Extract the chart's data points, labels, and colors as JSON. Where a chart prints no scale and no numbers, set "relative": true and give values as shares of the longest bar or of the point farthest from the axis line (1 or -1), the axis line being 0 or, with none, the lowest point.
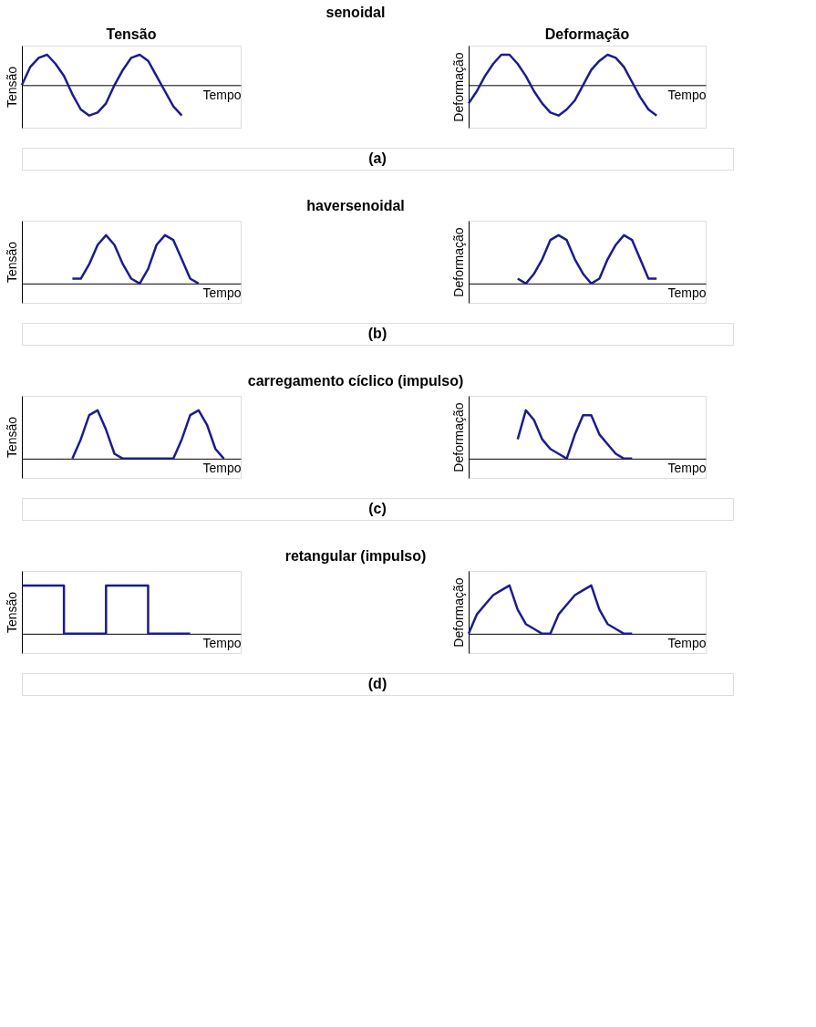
{
  "chart_data": [
    {
      "type": "line",
      "relative": true,
      "title": "Tensão",
      "ylabel": "Tensão",
      "xlabel": "Tempo",
      "line_style": "solid",
      "annotations": [
        "senoidal",
        "(a)"
      ],
      "categories": [
        null,
        null,
        null,
        null,
        null,
        null,
        null,
        null,
        null,
        null,
        null,
        null,
        null,
        null,
        null,
        null,
        null,
        null,
        null,
        null,
        null,
        null,
        null,
        null,
        null,
        null,
        null
      ],
      "series": [
        {
          "color": "#1c1c8c",
          "values": [
            0.0,
            0.6,
            0.9,
            1.0,
            0.7,
            0.3,
            -0.3,
            -0.8,
            -1.0,
            -0.9,
            -0.6,
            0.0,
            0.5,
            0.9,
            1.0,
            0.8,
            0.3,
            -0.2,
            -0.7,
            -1.0,
            null,
            null,
            null,
            null,
            null,
            null,
            null
          ]
        }
      ]
    },
    {
      "type": "line",
      "relative": true,
      "title": "Deformação",
      "ylabel": "Deformação",
      "xlabel": "Tempo",
      "line_style": "solid",
      "categories": [
        null,
        null,
        null,
        null,
        null,
        null,
        null,
        null,
        null,
        null,
        null,
        null,
        null,
        null,
        null,
        null,
        null,
        null,
        null,
        null,
        null,
        null,
        null,
        null,
        null,
        null,
        null,
        null,
        null,
        null
      ],
      "series": [
        {
          "color": "#1c1c8c",
          "values": [
            -0.6,
            -0.2,
            0.3,
            0.7,
            1.0,
            1.0,
            0.7,
            0.3,
            -0.2,
            -0.6,
            -0.9,
            -1.0,
            -0.8,
            -0.5,
            0.0,
            0.5,
            0.8,
            1.0,
            0.9,
            0.6,
            0.1,
            -0.4,
            -0.8,
            -1.0,
            null,
            null,
            null,
            null,
            null,
            null
          ]
        }
      ]
    },
    {
      "type": "line",
      "relative": true,
      "ylabel": "Tensão",
      "xlabel": "Tempo",
      "line_style": "solid",
      "annotations": [
        "haversenoidal",
        "(b)"
      ],
      "categories": [
        null,
        null,
        null,
        null,
        null,
        null,
        null,
        null,
        null,
        null,
        null,
        null,
        null,
        null,
        null,
        null,
        null,
        null,
        null,
        null,
        null,
        null,
        null,
        null,
        null,
        null,
        null
      ],
      "series": [
        {
          "color": "#1c1c8c",
          "values": [
            null,
            null,
            null,
            null,
            null,
            null,
            0.1,
            0.1,
            0.4,
            0.8,
            1.0,
            0.8,
            0.4,
            0.1,
            0.0,
            0.3,
            0.8,
            1.0,
            0.9,
            0.5,
            0.1,
            0.0,
            null,
            null,
            null,
            null,
            null
          ]
        }
      ]
    },
    {
      "type": "line",
      "relative": true,
      "ylabel": "Deformação",
      "xlabel": "Tempo",
      "line_style": "solid",
      "categories": [
        null,
        null,
        null,
        null,
        null,
        null,
        null,
        null,
        null,
        null,
        null,
        null,
        null,
        null,
        null,
        null,
        null,
        null,
        null,
        null,
        null,
        null,
        null,
        null,
        null,
        null,
        null,
        null,
        null,
        null
      ],
      "series": [
        {
          "color": "#1c1c8c",
          "values": [
            null,
            null,
            null,
            null,
            null,
            null,
            0.1,
            0.0,
            0.2,
            0.5,
            0.9,
            1.0,
            0.9,
            0.5,
            0.2,
            0.0,
            0.1,
            0.5,
            0.8,
            1.0,
            0.9,
            0.5,
            0.1,
            0.1,
            null,
            null,
            null,
            null,
            null,
            null
          ]
        }
      ]
    },
    {
      "type": "line",
      "relative": true,
      "ylabel": "Tensão",
      "xlabel": "Tempo",
      "line_style": "solid",
      "annotations": [
        "carregamento cíclico (impulso)",
        "(c)"
      ],
      "categories": [
        null,
        null,
        null,
        null,
        null,
        null,
        null,
        null,
        null,
        null,
        null,
        null,
        null,
        null,
        null,
        null,
        null,
        null,
        null,
        null,
        null,
        null,
        null,
        null,
        null,
        null,
        null
      ],
      "series": [
        {
          "color": "#1c1c8c",
          "values": [
            null,
            null,
            null,
            null,
            null,
            null,
            0.0,
            0.4,
            0.9,
            1.0,
            0.6,
            0.1,
            0.0,
            0.0,
            0.0,
            0.0,
            0.0,
            0.0,
            0.0,
            0.4,
            0.9,
            1.0,
            0.7,
            0.2,
            0.0,
            null,
            null
          ]
        }
      ]
    },
    {
      "type": "line",
      "relative": true,
      "ylabel": "Deformação",
      "xlabel": "Tempo",
      "line_style": "solid",
      "categories": [
        null,
        null,
        null,
        null,
        null,
        null,
        null,
        null,
        null,
        null,
        null,
        null,
        null,
        null,
        null,
        null,
        null,
        null,
        null,
        null,
        null,
        null,
        null,
        null,
        null,
        null,
        null,
        null,
        null,
        null
      ],
      "series": [
        {
          "color": "#1c1c8c",
          "values": [
            null,
            null,
            null,
            null,
            null,
            null,
            0.4,
            1.0,
            0.8,
            0.4,
            0.2,
            0.1,
            0.0,
            0.5,
            0.9,
            0.9,
            0.5,
            0.3,
            0.1,
            0.0,
            0.0,
            null,
            null,
            null,
            null,
            null,
            null,
            null,
            null,
            null
          ]
        }
      ]
    },
    {
      "type": "step",
      "relative": true,
      "ylabel": "Tensão",
      "xlabel": "Tempo",
      "line_style": "solid",
      "annotations": [
        "retangular (impulso)",
        "(d)"
      ],
      "categories": [
        null,
        null,
        null,
        null,
        null,
        null,
        null,
        null,
        null,
        null,
        null,
        null,
        null,
        null,
        null,
        null,
        null,
        null,
        null,
        null,
        null,
        null,
        null,
        null,
        null,
        null,
        null
      ],
      "series": [
        {
          "color": "#1c1c8c",
          "values": [
            1,
            1,
            1,
            1,
            1,
            0,
            0,
            0,
            0,
            0,
            1,
            1,
            1,
            1,
            1,
            0,
            0,
            0,
            0,
            0,
            0,
            null,
            null,
            null,
            null,
            null,
            null
          ]
        }
      ]
    },
    {
      "type": "line",
      "relative": true,
      "ylabel": "Deformação",
      "xlabel": "Tempo",
      "line_style": "solid",
      "categories": [
        null,
        null,
        null,
        null,
        null,
        null,
        null,
        null,
        null,
        null,
        null,
        null,
        null,
        null,
        null,
        null,
        null,
        null,
        null,
        null,
        null,
        null,
        null,
        null,
        null,
        null,
        null,
        null,
        null,
        null
      ],
      "series": [
        {
          "color": "#1c1c8c",
          "values": [
            0.0,
            0.4,
            0.6,
            0.8,
            0.9,
            1.0,
            0.5,
            0.2,
            0.1,
            0.0,
            0.0,
            0.4,
            0.6,
            0.8,
            0.9,
            1.0,
            0.5,
            0.2,
            0.1,
            0.0,
            0.0,
            null,
            null,
            null,
            null,
            null,
            null,
            null,
            null,
            null
          ]
        }
      ]
    }
  ]
}
